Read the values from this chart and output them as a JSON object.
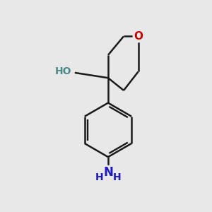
{
  "bg_color": "#e8e8e8",
  "bond_color": "#1a1a1a",
  "O_color": "#cc0000",
  "N_color": "#1a1acc",
  "OH_color": "#4a8a8a",
  "line_width": 1.8,
  "font_size_O": 11,
  "font_size_OH": 10,
  "font_size_N": 11,
  "fig_size": [
    3.0,
    3.0
  ],
  "dpi": 100,
  "xlim": [
    0,
    10
  ],
  "ylim": [
    0,
    10
  ]
}
